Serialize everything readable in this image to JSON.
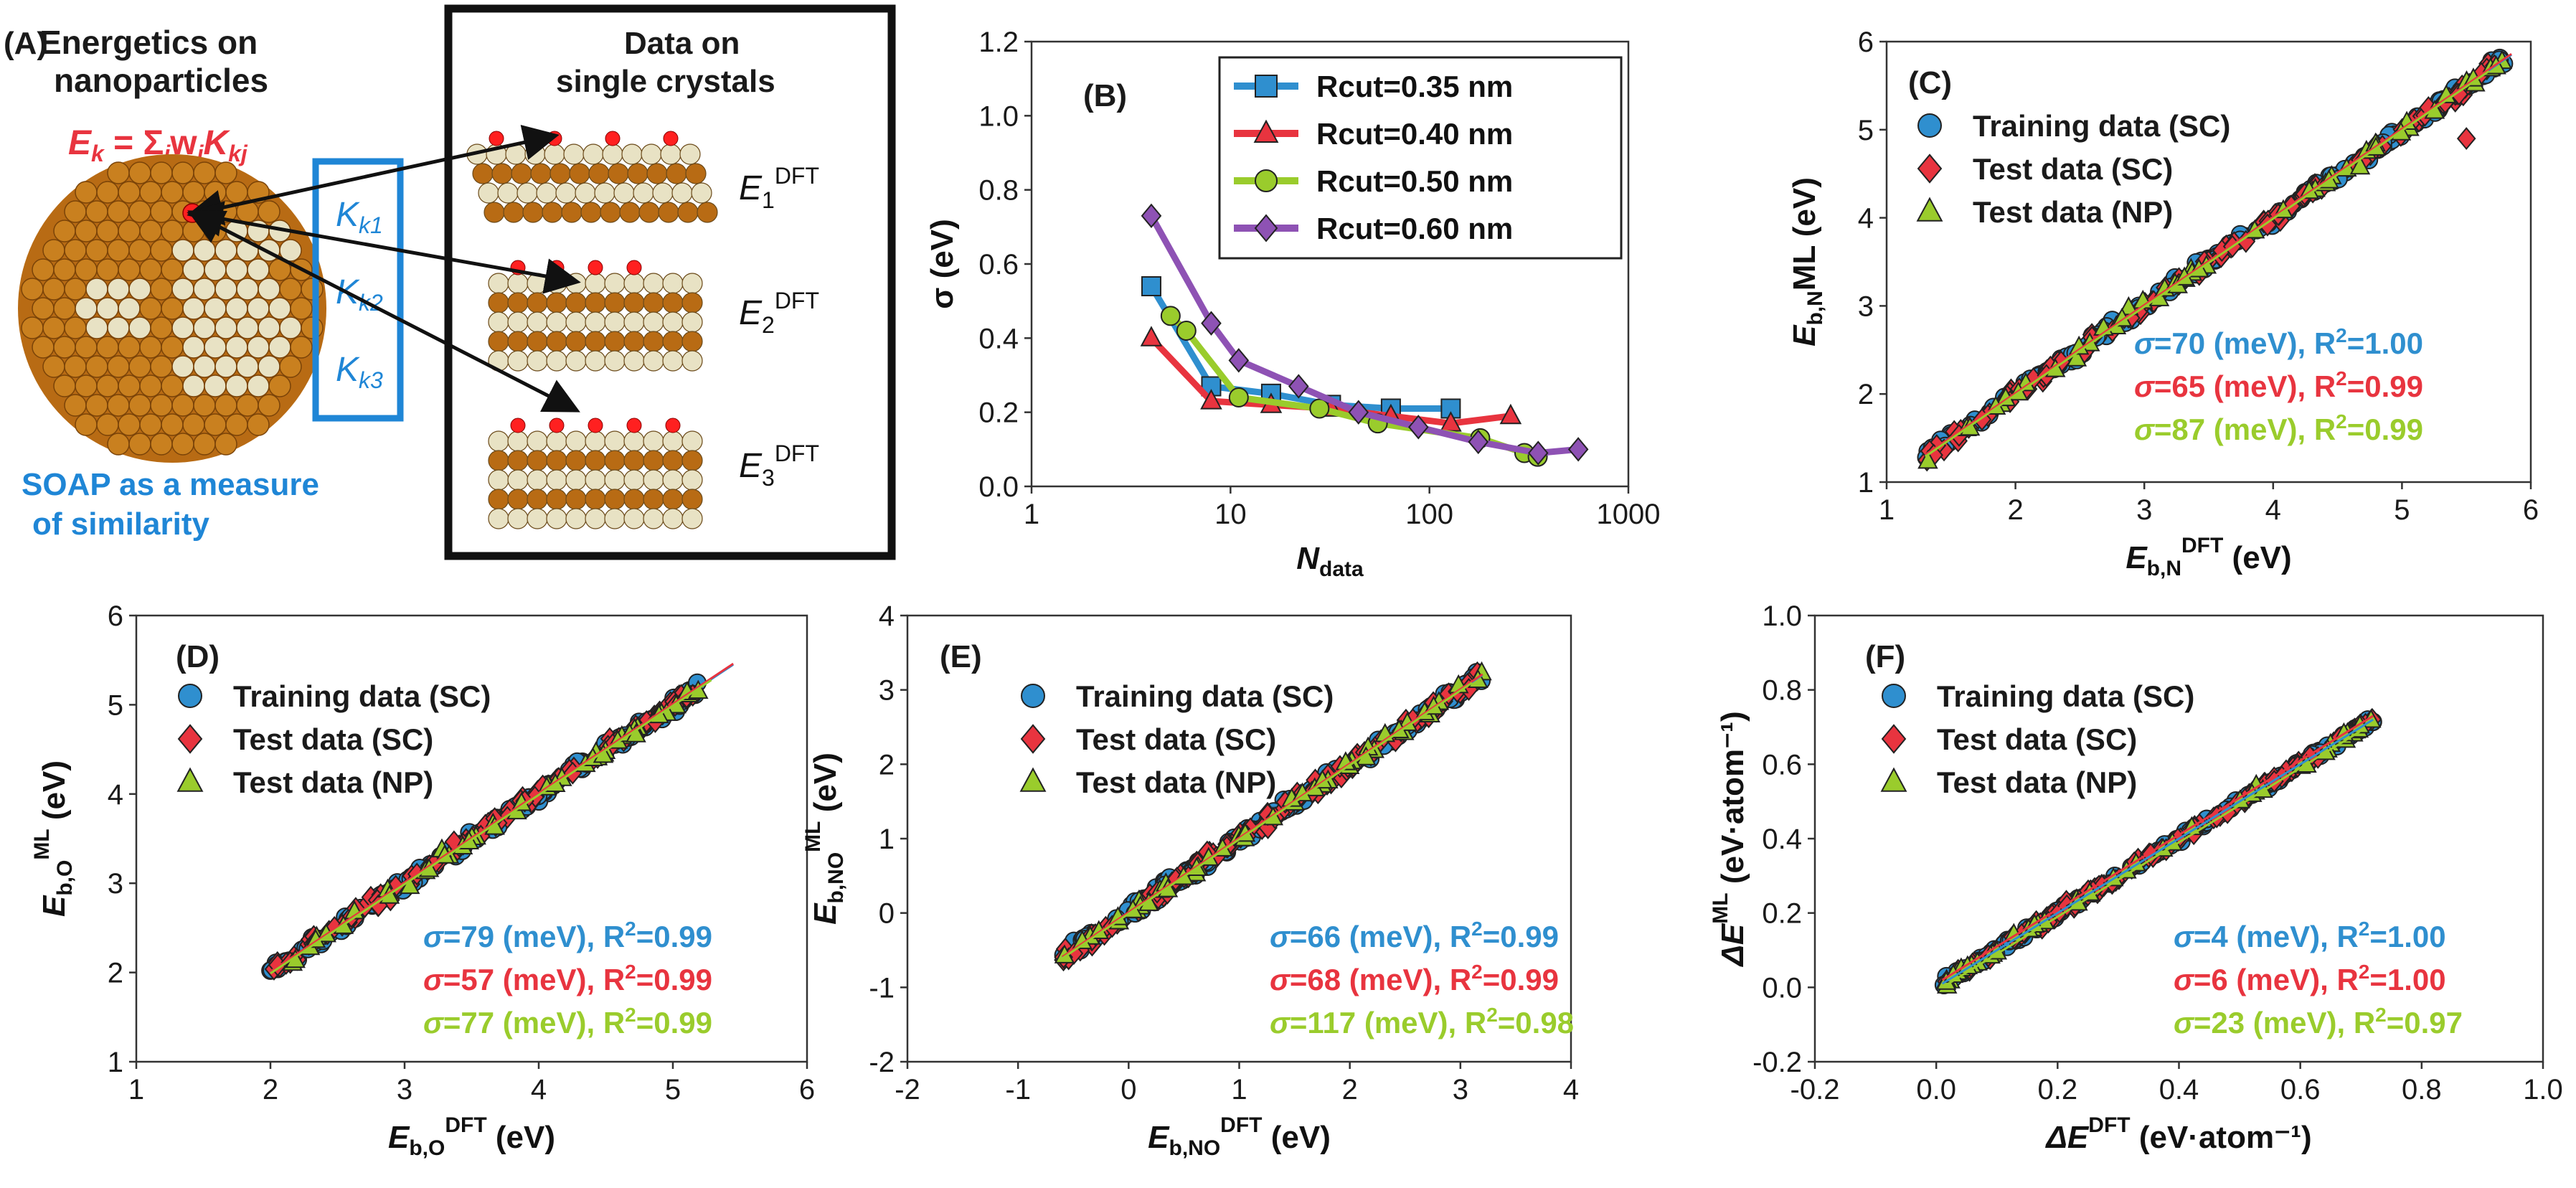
{
  "colors": {
    "blue": "#2f8fcf",
    "red": "#e8343f",
    "green": "#9acc2c",
    "purple": "#8e52b4",
    "orange": "#c77a1e",
    "cream": "#e8e2c4"
  },
  "panelA": {
    "label": "(A)",
    "np_title_1": "Energetics on",
    "np_title_2": "nanoparticles",
    "formula_lhs": "E",
    "formula_lhs_sub": "k",
    "formula_rhs": " = Σ",
    "formula_j": "j",
    "formula_w": "w",
    "formula_K": "K",
    "formula_kj": "kj",
    "kernels": [
      {
        "base": "K",
        "sub": "k1"
      },
      {
        "base": "K",
        "sub": "k2"
      },
      {
        "base": "K",
        "sub": "k3"
      }
    ],
    "soap_1": "SOAP as a measure",
    "soap_2": "of similarity",
    "sc_title_1": "Data on",
    "sc_title_2": "single crystals",
    "energies": [
      {
        "base": "E",
        "sub": "1",
        "sup": "DFT"
      },
      {
        "base": "E",
        "sub": "2",
        "sup": "DFT"
      },
      {
        "base": "E",
        "sub": "3",
        "sup": "DFT"
      }
    ]
  },
  "chart_data": [
    {
      "panel": "(B)",
      "type": "line",
      "xscale": "log",
      "xlabel_base": "N",
      "xlabel_sub": "data",
      "ylabel": "σ (eV)",
      "xlim": [
        1,
        1000
      ],
      "ylim": [
        0,
        1.2
      ],
      "xticks": [
        "1",
        "10",
        "100",
        "1000"
      ],
      "yticks": [
        "0.0",
        "0.2",
        "0.4",
        "0.6",
        "0.8",
        "1.0",
        "1.2"
      ],
      "series": [
        {
          "name": "Rcut=0.35 nm",
          "color": "#2f8fcf",
          "marker": "square",
          "x": [
            4,
            8,
            16,
            32,
            64,
            128
          ],
          "y": [
            0.54,
            0.27,
            0.25,
            0.22,
            0.21,
            0.21
          ]
        },
        {
          "name": "Rcut=0.40 nm",
          "color": "#e8343f",
          "marker": "triangle",
          "x": [
            4,
            8,
            16,
            32,
            64,
            128,
            256
          ],
          "y": [
            0.4,
            0.23,
            0.22,
            0.21,
            0.19,
            0.17,
            0.19
          ]
        },
        {
          "name": "Rcut=0.50 nm",
          "color": "#9acc2c",
          "marker": "circle",
          "x": [
            5,
            6,
            11,
            28,
            55,
            180,
            300,
            350
          ],
          "y": [
            0.46,
            0.42,
            0.24,
            0.21,
            0.17,
            0.13,
            0.09,
            0.08
          ]
        },
        {
          "name": "Rcut=0.60 nm",
          "color": "#8e52b4",
          "marker": "diamond",
          "x": [
            4,
            8,
            11,
            22,
            44,
            88,
            176,
            352,
            560
          ],
          "y": [
            0.73,
            0.44,
            0.34,
            0.27,
            0.2,
            0.16,
            0.12,
            0.09,
            0.1
          ]
        }
      ]
    },
    {
      "panel": "(C)",
      "type": "scatter",
      "xlabel_base": "E",
      "xlabel_sub": "b,N",
      "xlabel_sup": "DFT",
      "xlabel_unit": "  (eV)",
      "ylabel_base": "E",
      "ylabel_sub": "b,N",
      "ylabel_tail": "ML (eV)",
      "ylabel_sup": "",
      "xlim": [
        1,
        6
      ],
      "ylim": [
        1,
        6
      ],
      "xticks": [
        "1",
        "2",
        "3",
        "4",
        "5",
        "6"
      ],
      "yticks": [
        "1",
        "2",
        "3",
        "4",
        "5",
        "6"
      ],
      "legend": [
        "Training data (SC)",
        "Test data (SC)",
        "Test data (NP)"
      ],
      "stats": [
        {
          "sigma": "=70 (meV), R",
          "r2": "=1.00",
          "color": "#2f8fcf"
        },
        {
          "sigma": "=65 (meV), R",
          "r2": "=0.99",
          "color": "#e8343f"
        },
        {
          "sigma": "=87 (meV), R",
          "r2": "=0.99",
          "color": "#9acc2c"
        }
      ],
      "range": [
        1.3,
        5.8
      ],
      "sd": 0.08,
      "fit": [
        1.3,
        5.85
      ],
      "outlier": [
        5.5,
        4.9
      ]
    },
    {
      "panel": "(D)",
      "type": "scatter",
      "xlabel_base": "E",
      "xlabel_sub": "b,O",
      "xlabel_sup": "DFT",
      "xlabel_unit": " (eV)",
      "ylabel_base": "E",
      "ylabel_sub": "b,O",
      "ylabel_tail": " (eV)",
      "ylabel_sup": "ML",
      "xlim": [
        1,
        6
      ],
      "ylim": [
        1,
        6
      ],
      "xticks": [
        "1",
        "2",
        "3",
        "4",
        "5",
        "6"
      ],
      "yticks": [
        "1",
        "2",
        "3",
        "4",
        "5",
        "6"
      ],
      "legend": [
        "Training data (SC)",
        "Test data (SC)",
        "Test data (NP)"
      ],
      "stats": [
        {
          "sigma": "=79 (meV), R",
          "r2": "=0.99",
          "color": "#2f8fcf"
        },
        {
          "sigma": "=57 (meV), R",
          "r2": "=0.99",
          "color": "#e8343f"
        },
        {
          "sigma": "=77 (meV), R",
          "r2": "=0.99",
          "color": "#9acc2c"
        }
      ],
      "range": [
        2.0,
        5.2
      ],
      "sd": 0.08,
      "fit": [
        2.0,
        5.45
      ]
    },
    {
      "panel": "(E)",
      "type": "scatter",
      "xlabel_base": "E",
      "xlabel_sub": "b,NO",
      "xlabel_sup": "DFT",
      "xlabel_unit": " (eV)",
      "ylabel_base": "E",
      "ylabel_sub": "b,NO",
      "ylabel_tail": " (eV)",
      "ylabel_sup": "ML",
      "xlim": [
        -2,
        4
      ],
      "ylim": [
        -2,
        4
      ],
      "xticks": [
        "-2",
        "-1",
        "0",
        "1",
        "2",
        "3",
        "4"
      ],
      "yticks": [
        "-2",
        "-1",
        "0",
        "1",
        "2",
        "3",
        "4"
      ],
      "legend": [
        "Training data (SC)",
        "Test data (SC)",
        "Test data (NP)"
      ],
      "stats": [
        {
          "sigma": "=66 (meV), R",
          "r2": "=0.99",
          "color": "#2f8fcf"
        },
        {
          "sigma": "=68 (meV), R",
          "r2": "=0.99",
          "color": "#e8343f"
        },
        {
          "sigma": "=117 (meV), R",
          "r2": "=0.98",
          "color": "#9acc2c"
        }
      ],
      "range": [
        -0.6,
        3.2
      ],
      "sd": 0.1,
      "fit": [
        -0.6,
        3.2
      ]
    },
    {
      "panel": "(F)",
      "type": "scatter",
      "xlabel_base": "ΔE",
      "xlabel_sub": "",
      "xlabel_sup": "DFT",
      "xlabel_unit": " (eV·atom⁻¹)",
      "ylabel_base": "ΔE",
      "ylabel_sub": "",
      "ylabel_tail": "  (eV·atom⁻¹)",
      "ylabel_sup": "ML",
      "xlim": [
        -0.2,
        1.0
      ],
      "ylim": [
        -0.2,
        1.0
      ],
      "xticks": [
        "-0.2",
        "0.0",
        "0.2",
        "0.4",
        "0.6",
        "0.8",
        "1.0"
      ],
      "yticks": [
        "-0.2",
        "0.0",
        "0.2",
        "0.4",
        "0.6",
        "0.8",
        "1.0"
      ],
      "legend": [
        "Training data (SC)",
        "Test data (SC)",
        "Test data (NP)"
      ],
      "stats": [
        {
          "sigma": "=4 (meV), R",
          "r2": "=1.00",
          "color": "#2f8fcf"
        },
        {
          "sigma": "=6 (meV), R",
          "r2": "=1.00",
          "color": "#e8343f"
        },
        {
          "sigma": "=23 (meV), R",
          "r2": "=0.97",
          "color": "#9acc2c"
        }
      ],
      "range": [
        0.01,
        0.72
      ],
      "sd": 0.012,
      "fit": [
        0.01,
        0.72
      ]
    }
  ]
}
